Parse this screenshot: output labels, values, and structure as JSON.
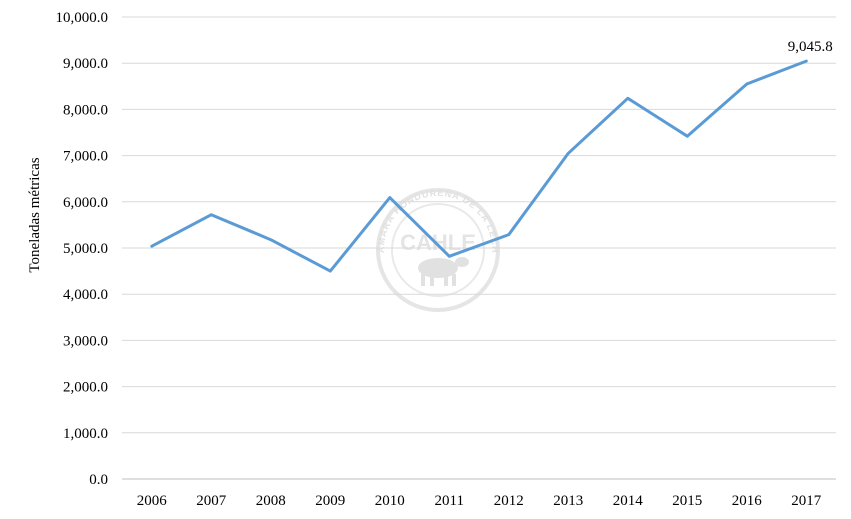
{
  "chart_data": {
    "type": "line",
    "title": "",
    "xlabel": "",
    "ylabel": "Toneladas métricas",
    "categories": [
      "2006",
      "2007",
      "2008",
      "2009",
      "2010",
      "2011",
      "2012",
      "2013",
      "2014",
      "2015",
      "2016",
      "2017"
    ],
    "series": [
      {
        "values": [
          5040,
          5720,
          5180,
          4500,
          6090,
          4820,
          5290,
          7050,
          8240,
          7420,
          8550,
          9045.8
        ],
        "color": "#5b9bd5"
      }
    ],
    "ylim": [
      0,
      10000
    ],
    "yticks": [
      0,
      1000,
      2000,
      3000,
      4000,
      5000,
      6000,
      7000,
      8000,
      9000,
      10000
    ],
    "ytick_labels": [
      "0.0",
      "1,000.0",
      "2,000.0",
      "3,000.0",
      "4,000.0",
      "5,000.0",
      "6,000.0",
      "7,000.0",
      "8,000.0",
      "9,000.0",
      "10,000.0"
    ],
    "grid": true,
    "legend": "none",
    "annotations": [
      {
        "category": "2017",
        "value": 9045.8,
        "text": "9,045.8"
      }
    ]
  },
  "watermark": {
    "arc_text": "CÁMARA HONDUREÑA DE LA LECHE",
    "logo_text": "CAHLE",
    "icon": "cow-icon"
  }
}
